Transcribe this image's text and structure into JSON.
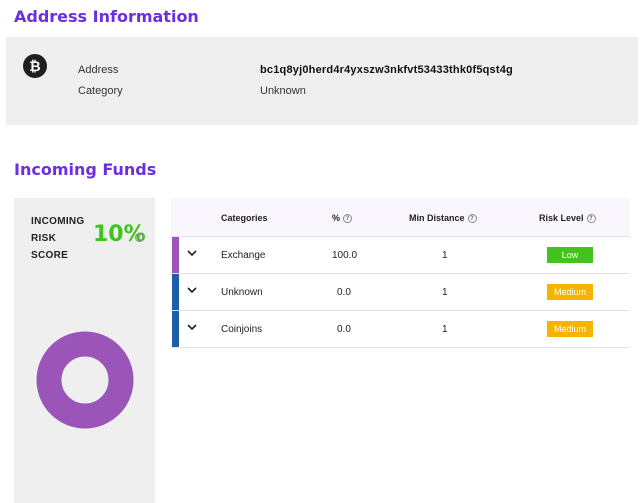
{
  "address_section": {
    "title": "Address Information",
    "icon": "bitcoin-icon",
    "address_label": "Address",
    "address_value": "bc1q8yj0herd4r4yxszw3nkfvt53433thk0f5qst4g",
    "category_label": "Category",
    "category_value": "Unknown"
  },
  "funds_section": {
    "title": "Incoming Funds",
    "risk": {
      "label_line1": "INCOMING",
      "label_line2": "RISK",
      "label_line3": "SCORE",
      "value": "10%",
      "color": "#3dc51b"
    },
    "donut_color": "#9b55b8",
    "table": {
      "headers": {
        "categories": "Categories",
        "percent": "%",
        "min_distance": "Min Distance",
        "risk_level": "Risk Level"
      },
      "rows": [
        {
          "category": "Exchange",
          "percent": "100.0",
          "min_distance": "1",
          "risk_level": "Low",
          "bar_color": "#9b55b8",
          "badge_color": "#44c21e"
        },
        {
          "category": "Unknown",
          "percent": "0.0",
          "min_distance": "1",
          "risk_level": "Medium",
          "bar_color": "#1f5fa8",
          "badge_color": "#f5b400"
        },
        {
          "category": "Coinjoins",
          "percent": "0.0",
          "min_distance": "1",
          "risk_level": "Medium",
          "bar_color": "#1f5fa8",
          "badge_color": "#f5b400"
        }
      ]
    }
  }
}
